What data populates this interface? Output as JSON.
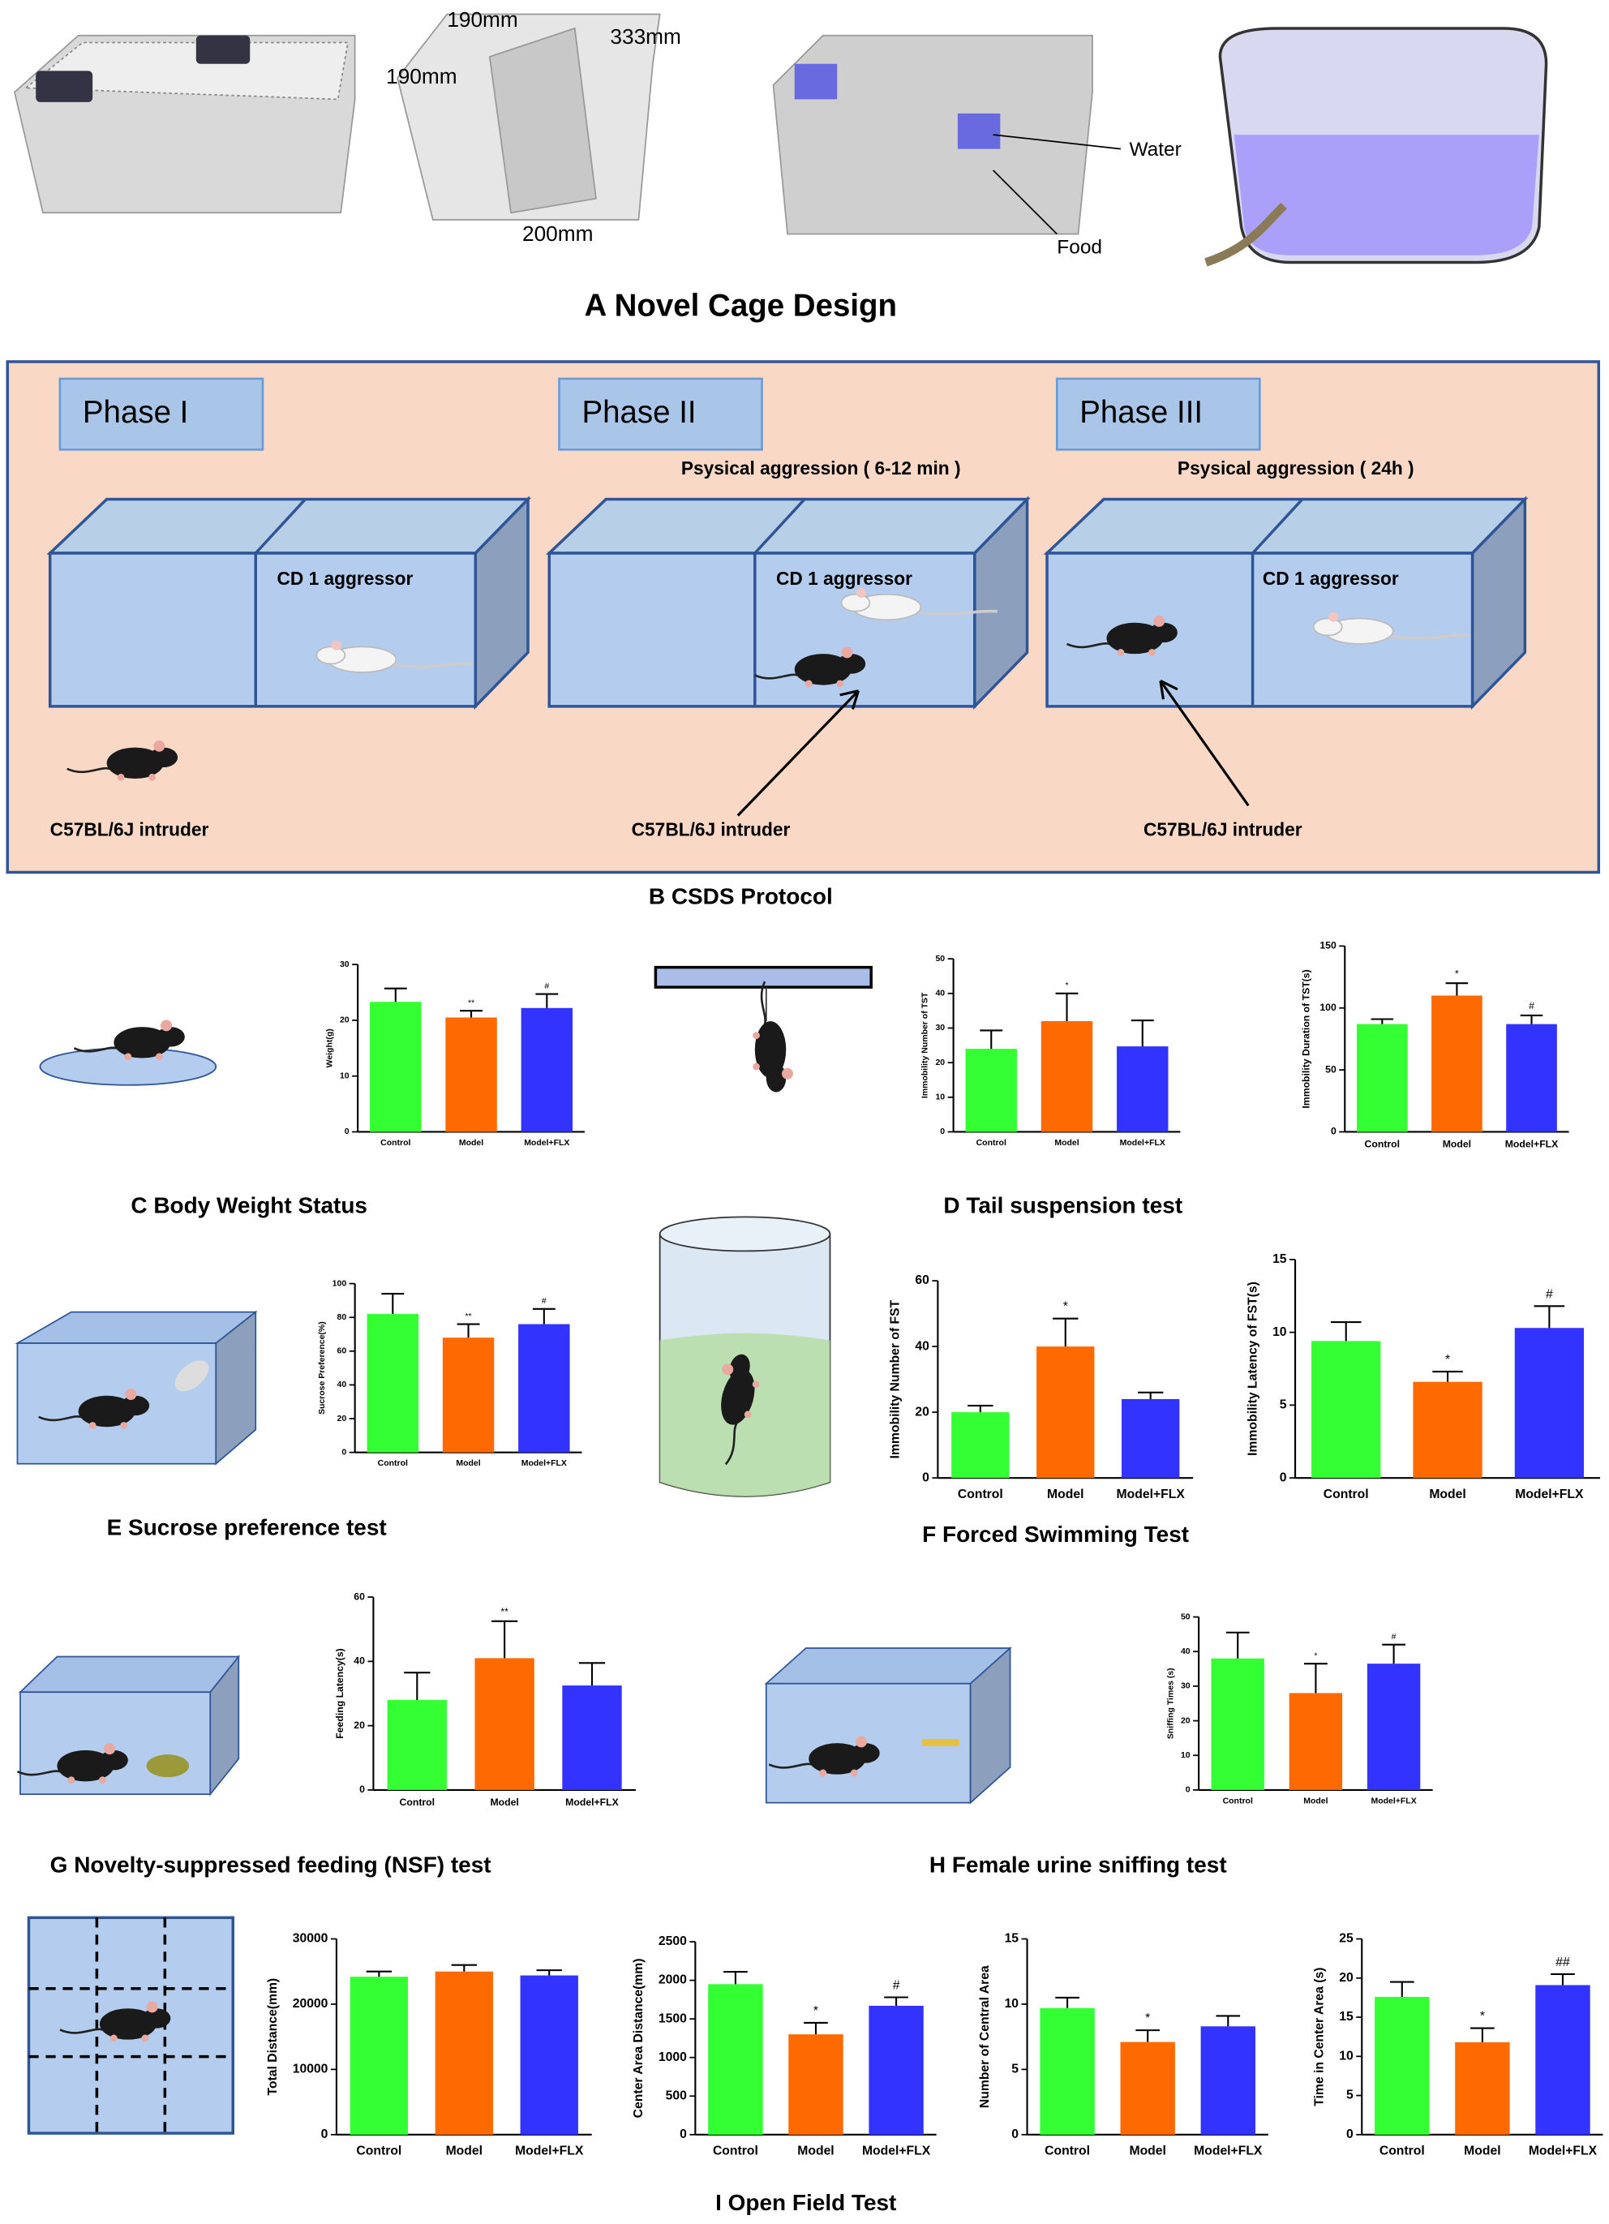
{
  "figure": {
    "cage_title": "A Novel Cage Design",
    "dims": [
      "190mm",
      "190mm",
      "333mm",
      "200mm"
    ],
    "water": "Water",
    "food": "Food",
    "phases": [
      "Phase I",
      "Phase II",
      "Phase III"
    ],
    "aggression": [
      "Psysical aggression ( 6-12 min )",
      "Psysical aggression ( 24h )"
    ],
    "aggressor_labels": [
      "CD 1 aggressor",
      "CD 1 aggressor",
      "CD 1 aggressor"
    ],
    "intruder_labels": [
      "C57BL/6J intruder",
      "C57BL/6J intruder",
      "C57BL/6J intruder"
    ],
    "protocol_title": "B CSDS Protocol",
    "captions": [
      "C   Body Weight Status",
      "D Tail suspension test",
      "E Sucrose preference test",
      "F Forced Swimming Test",
      "G Novelty-suppressed feeding (NSF) test",
      "H Female urine sniffing test",
      "I Open Field Test"
    ]
  },
  "chart_data": [
    {
      "type": "bar",
      "ylabel": "Weight(g)",
      "categories": [
        "Control",
        "Model",
        "Model+FLX"
      ],
      "colors": [
        "#33ff33",
        "#ff6a00",
        "#3333ff"
      ],
      "values": [
        23.3,
        20.5,
        22.2
      ],
      "errors": [
        2.4,
        1.2,
        2.5
      ],
      "value_annotations": [
        null,
        "**",
        "#"
      ],
      "ylim": [
        0,
        30
      ],
      "yticks": [
        0,
        10,
        20,
        30
      ]
    },
    {
      "type": "bar",
      "ylabel": "Immobility Number of  TST",
      "categories": [
        "Control",
        "Model",
        "Model+FLX"
      ],
      "colors": [
        "#33ff33",
        "#ff6a00",
        "#3333ff"
      ],
      "values": [
        24,
        32,
        24.7
      ],
      "errors": [
        5.3,
        8,
        7.5
      ],
      "value_annotations": [
        null,
        "*",
        null
      ],
      "ylim": [
        0,
        50
      ],
      "yticks": [
        0,
        10,
        20,
        30,
        40,
        50
      ]
    },
    {
      "type": "bar",
      "ylabel": "Immobility Duration of  TST(s)",
      "categories": [
        "Control",
        "Model",
        "Model+FLX"
      ],
      "colors": [
        "#33ff33",
        "#ff6a00",
        "#3333ff"
      ],
      "values": [
        87,
        110,
        87
      ],
      "errors": [
        4,
        10,
        7
      ],
      "value_annotations": [
        null,
        "*",
        "#"
      ],
      "ylim": [
        0,
        150
      ],
      "yticks": [
        0,
        50,
        100,
        150
      ]
    },
    {
      "type": "bar",
      "ylabel": "Sucrose Preference(%)",
      "categories": [
        "Control",
        "Model",
        "Model+FLX"
      ],
      "colors": [
        "#33ff33",
        "#ff6a00",
        "#3333ff"
      ],
      "values": [
        82,
        68,
        76
      ],
      "errors": [
        12,
        8,
        9
      ],
      "value_annotations": [
        null,
        "**",
        "#"
      ],
      "ylim": [
        0,
        100
      ],
      "yticks": [
        0,
        20,
        40,
        60,
        80,
        100
      ]
    },
    {
      "type": "bar",
      "ylabel": "Immobility Number of FST",
      "categories": [
        "Control",
        "Model",
        "Model+FLX"
      ],
      "colors": [
        "#33ff33",
        "#ff6a00",
        "#3333ff"
      ],
      "values": [
        20,
        40,
        24
      ],
      "errors": [
        2,
        8.5,
        2
      ],
      "value_annotations": [
        null,
        "*",
        null
      ],
      "ylim": [
        0,
        60
      ],
      "yticks": [
        0,
        20,
        40,
        60
      ]
    },
    {
      "type": "bar",
      "ylabel": "Immobility Latency of FST(s)",
      "categories": [
        "Control",
        "Model",
        "Model+FLX"
      ],
      "colors": [
        "#33ff33",
        "#ff6a00",
        "#3333ff"
      ],
      "values": [
        9.4,
        6.6,
        10.3
      ],
      "errors": [
        1.3,
        0.7,
        1.5
      ],
      "value_annotations": [
        null,
        "*",
        "#"
      ],
      "ylim": [
        0,
        15
      ],
      "yticks": [
        0,
        5,
        10,
        15
      ]
    },
    {
      "type": "bar",
      "ylabel": "Feeding Latency(s)",
      "categories": [
        "Control",
        "Model",
        "Model+FLX"
      ],
      "colors": [
        "#33ff33",
        "#ff6a00",
        "#3333ff"
      ],
      "values": [
        28,
        41,
        32.5
      ],
      "errors": [
        8.5,
        11.5,
        7
      ],
      "value_annotations": [
        null,
        "**",
        null
      ],
      "ylim": [
        0,
        60
      ],
      "yticks": [
        0,
        20,
        40,
        60
      ]
    },
    {
      "type": "bar",
      "ylabel": "Sniffing Times (s)",
      "categories": [
        "Control",
        "Model",
        "Model+FLX"
      ],
      "colors": [
        "#33ff33",
        "#ff6a00",
        "#3333ff"
      ],
      "values": [
        38,
        28,
        36.5
      ],
      "errors": [
        7.5,
        8.5,
        5.5
      ],
      "value_annotations": [
        null,
        "*",
        "#"
      ],
      "ylim": [
        0,
        50
      ],
      "yticks": [
        0,
        10,
        20,
        30,
        40,
        50
      ]
    },
    {
      "type": "bar",
      "ylabel": "Total Distance(mm)",
      "categories": [
        "Control",
        "Model",
        "Model+FLX"
      ],
      "colors": [
        "#33ff33",
        "#ff6a00",
        "#3333ff"
      ],
      "values": [
        24200,
        25000,
        24400
      ],
      "errors": [
        800,
        1000,
        800
      ],
      "value_annotations": [
        null,
        null,
        null
      ],
      "ylim": [
        0,
        30000
      ],
      "yticks": [
        0,
        10000,
        20000,
        30000
      ]
    },
    {
      "type": "bar",
      "ylabel": "Center Area Distance(mm)",
      "categories": [
        "Control",
        "Model",
        "Model+FLX"
      ],
      "colors": [
        "#33ff33",
        "#ff6a00",
        "#3333ff"
      ],
      "values": [
        1950,
        1300,
        1670
      ],
      "errors": [
        160,
        150,
        110
      ],
      "value_annotations": [
        null,
        "*",
        "#"
      ],
      "ylim": [
        0,
        2500
      ],
      "yticks": [
        0,
        500,
        1000,
        1500,
        2000,
        2500
      ]
    },
    {
      "type": "bar",
      "ylabel": "Number of Central Area",
      "categories": [
        "Control",
        "Model",
        "Model+FLX"
      ],
      "colors": [
        "#33ff33",
        "#ff6a00",
        "#3333ff"
      ],
      "values": [
        9.7,
        7.1,
        8.3
      ],
      "errors": [
        0.8,
        0.9,
        0.8
      ],
      "value_annotations": [
        null,
        "*",
        null
      ],
      "ylim": [
        0,
        15
      ],
      "yticks": [
        0,
        5,
        10,
        15
      ]
    },
    {
      "type": "bar",
      "ylabel": "Time in Center Area (s)",
      "categories": [
        "Control",
        "Model",
        "Model+FLX"
      ],
      "colors": [
        "#33ff33",
        "#ff6a00",
        "#3333ff"
      ],
      "values": [
        17.6,
        11.8,
        19.1
      ],
      "errors": [
        1.9,
        1.8,
        1.4
      ],
      "value_annotations": [
        null,
        "*",
        "##"
      ],
      "ylim": [
        0,
        25
      ],
      "yticks": [
        0,
        5,
        10,
        15,
        20,
        25
      ]
    }
  ]
}
